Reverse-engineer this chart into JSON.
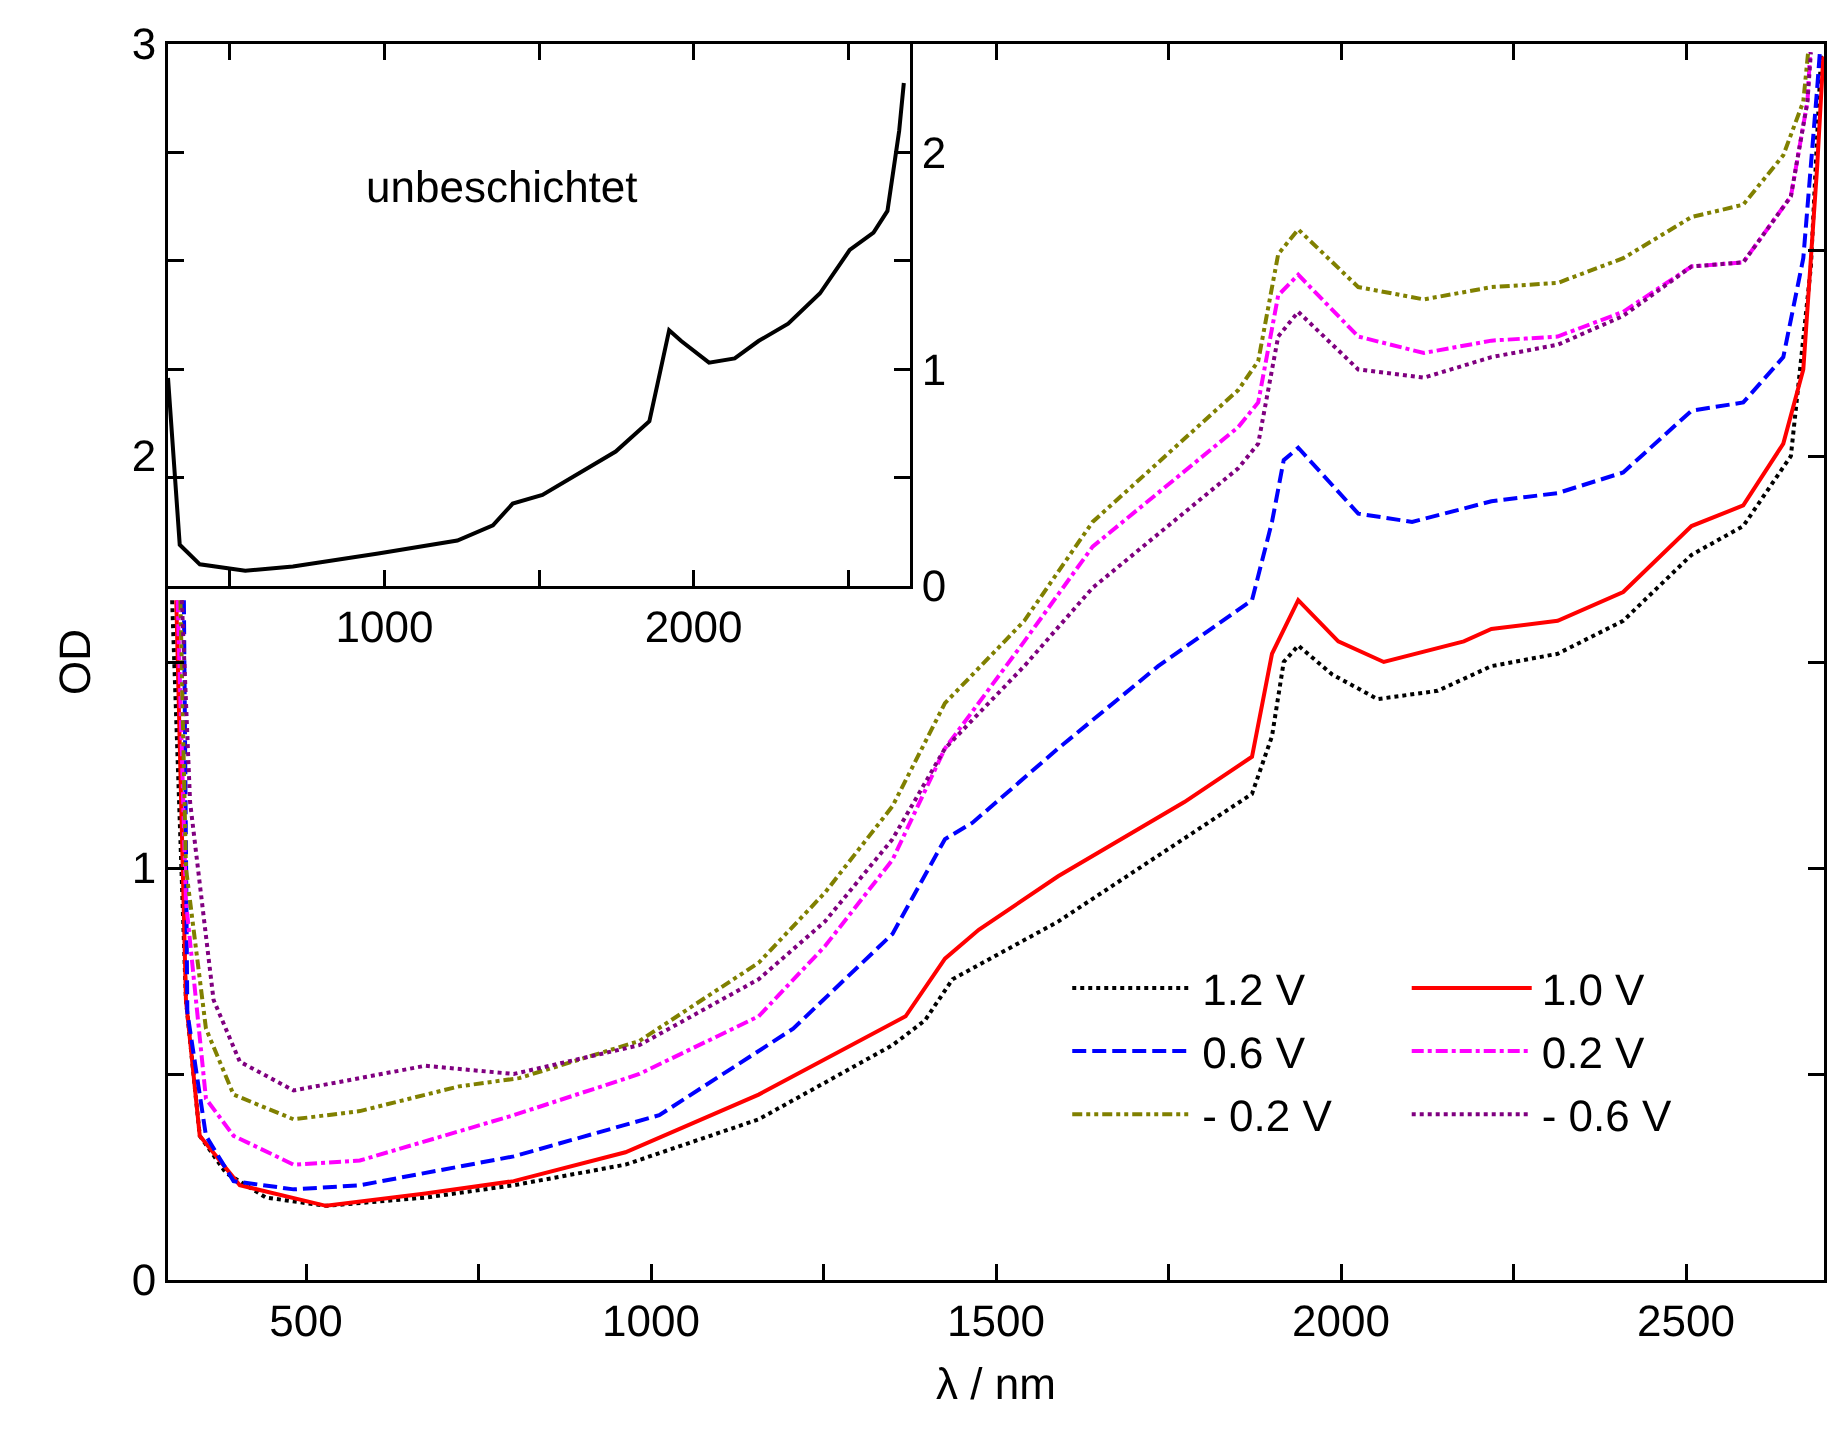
{
  "chart_data": [
    {
      "type": "line",
      "xlabel": "λ / nm",
      "ylabel": "OD",
      "xlim": [
        300,
        2700
      ],
      "ylim": [
        0,
        3
      ],
      "xticks": [
        500,
        {
          "value": 750,
          "label": null
        },
        1000,
        {
          "value": 1250,
          "label": null
        },
        1500,
        {
          "value": 1750,
          "label": null
        },
        2000,
        {
          "value": 2250,
          "label": null
        },
        2500
      ],
      "yticks": [
        0,
        {
          "value": 0.5,
          "label": null
        },
        1,
        {
          "value": 1.5,
          "label": null
        },
        2,
        {
          "value": 2.5,
          "label": null
        },
        3
      ],
      "grid": false,
      "legend": "bottom right",
      "marker": "none",
      "series": [
        {
          "name": "1.2 V",
          "color": "#000000",
          "line_style": "dotted",
          "x": [
            306,
            326,
            346,
            384,
            442,
            529,
            673,
            801,
            963,
            1156,
            1350,
            1397,
            1437,
            1590,
            1871,
            1900,
            1917,
            1938,
            1987,
            2053,
            2140,
            2218,
            2314,
            2409,
            2508,
            2583,
            2652,
            2681,
            2696
          ],
          "values": [
            1.65,
            0.68,
            0.35,
            0.26,
            0.2,
            0.18,
            0.2,
            0.23,
            0.28,
            0.39,
            0.57,
            0.63,
            0.73,
            0.87,
            1.18,
            1.32,
            1.5,
            1.54,
            1.47,
            1.41,
            1.43,
            1.49,
            1.52,
            1.6,
            1.76,
            1.83,
            2.0,
            2.46,
            2.98
          ]
        },
        {
          "name": "1.0 V",
          "color": "#ff0000",
          "line_style": "solid",
          "x": [
            312,
            326,
            346,
            404,
            529,
            673,
            801,
            963,
            1156,
            1369,
            1426,
            1475,
            1590,
            1773,
            1871,
            1900,
            1938,
            1996,
            2062,
            2178,
            2218,
            2314,
            2409,
            2508,
            2583,
            2641,
            2670,
            2690,
            2699
          ],
          "values": [
            1.65,
            0.68,
            0.35,
            0.23,
            0.18,
            0.21,
            0.24,
            0.31,
            0.45,
            0.64,
            0.78,
            0.85,
            0.98,
            1.16,
            1.27,
            1.52,
            1.65,
            1.55,
            1.5,
            1.55,
            1.58,
            1.6,
            1.67,
            1.83,
            1.88,
            2.03,
            2.21,
            2.7,
            2.97
          ]
        },
        {
          "name": "0.6 V",
          "color": "#0000ff",
          "line_style": "dashed",
          "x": [
            323,
            328,
            355,
            395,
            482,
            578,
            801,
            1012,
            1206,
            1350,
            1426,
            1466,
            1590,
            1735,
            1871,
            1900,
            1917,
            1938,
            2025,
            2103,
            2218,
            2314,
            2409,
            2508,
            2583,
            2641,
            2670,
            2690,
            2694
          ],
          "values": [
            1.65,
            0.65,
            0.35,
            0.24,
            0.22,
            0.23,
            0.3,
            0.4,
            0.61,
            0.84,
            1.07,
            1.11,
            1.29,
            1.49,
            1.65,
            1.84,
            1.99,
            2.02,
            1.86,
            1.84,
            1.89,
            1.91,
            1.96,
            2.11,
            2.13,
            2.24,
            2.48,
            2.89,
            2.98
          ]
        },
        {
          "name": "0.2 V",
          "color": "#ff00ff",
          "line_style": "dashdot",
          "x": [
            314,
            326,
            355,
            395,
            482,
            578,
            801,
            983,
            1156,
            1252,
            1350,
            1426,
            1541,
            1640,
            1851,
            1880,
            1909,
            1938,
            2025,
            2120,
            2218,
            2314,
            2409,
            2508,
            2583,
            2652,
            2676,
            2680
          ],
          "values": [
            1.65,
            0.92,
            0.44,
            0.35,
            0.28,
            0.29,
            0.4,
            0.5,
            0.64,
            0.81,
            1.02,
            1.29,
            1.55,
            1.78,
            2.07,
            2.13,
            2.39,
            2.44,
            2.29,
            2.25,
            2.28,
            2.29,
            2.35,
            2.46,
            2.47,
            2.63,
            2.86,
            2.98
          ]
        },
        {
          "name": "- 0.2 V",
          "color": "#808000",
          "line_style": "dashdotdot",
          "x": [
            318,
            326,
            355,
            395,
            482,
            578,
            722,
            809,
            983,
            1156,
            1252,
            1350,
            1426,
            1541,
            1640,
            1851,
            1880,
            1909,
            1938,
            2025,
            2120,
            2218,
            2314,
            2409,
            2508,
            2583,
            2641,
            2670,
            2677
          ],
          "values": [
            1.65,
            1.0,
            0.61,
            0.45,
            0.39,
            0.41,
            0.47,
            0.49,
            0.58,
            0.77,
            0.94,
            1.15,
            1.4,
            1.6,
            1.84,
            2.16,
            2.23,
            2.49,
            2.55,
            2.41,
            2.38,
            2.41,
            2.42,
            2.48,
            2.58,
            2.61,
            2.73,
            2.86,
            2.98
          ]
        },
        {
          "name": "- 0.6 V",
          "color": "#800080",
          "line_style": "dotted",
          "x": [
            320,
            332,
            366,
            404,
            482,
            578,
            673,
            801,
            983,
            1156,
            1252,
            1350,
            1426,
            1541,
            1640,
            1851,
            1880,
            1909,
            1938,
            2025,
            2120,
            2218,
            2314,
            2409,
            2508,
            2583,
            2652,
            2676,
            2681
          ],
          "values": [
            1.65,
            1.16,
            0.68,
            0.53,
            0.46,
            0.49,
            0.52,
            0.5,
            0.57,
            0.73,
            0.87,
            1.07,
            1.29,
            1.49,
            1.68,
            1.97,
            2.03,
            2.29,
            2.35,
            2.21,
            2.19,
            2.24,
            2.27,
            2.34,
            2.46,
            2.47,
            2.63,
            2.86,
            2.98
          ]
        }
      ]
    },
    {
      "type": "line",
      "xlim": [
        300,
        2700
      ],
      "ylim": [
        0,
        2.5
      ],
      "xticks": [
        {
          "value": 500,
          "label": null
        },
        1000,
        {
          "value": 1500,
          "label": null
        },
        2000,
        {
          "value": 2500,
          "label": null
        }
      ],
      "yticks": [
        0,
        {
          "value": 0.5,
          "label": null
        },
        1,
        {
          "value": 1.5,
          "label": null
        },
        2
      ],
      "grid": false,
      "legend": false,
      "marker": "none",
      "annotations": [
        "unbeschichtet"
      ],
      "series": [
        {
          "color": "#000000",
          "line_style": "solid",
          "x": [
            300,
            338,
            403,
            550,
            704,
            980,
            1236,
            1351,
            1415,
            1511,
            1748,
            1857,
            1883,
            1921,
            1960,
            2050,
            2133,
            2210,
            2306,
            2409,
            2505,
            2582,
            2627,
            2665,
            2680
          ],
          "values": [
            0.96,
            0.19,
            0.1,
            0.07,
            0.09,
            0.15,
            0.21,
            0.28,
            0.38,
            0.42,
            0.62,
            0.76,
            0.93,
            1.18,
            1.13,
            1.03,
            1.05,
            1.13,
            1.21,
            1.35,
            1.55,
            1.63,
            1.73,
            2.1,
            2.32
          ]
        }
      ]
    }
  ]
}
